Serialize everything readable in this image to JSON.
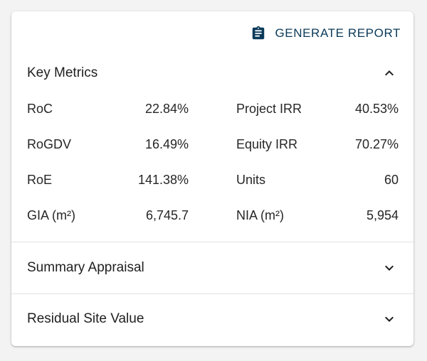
{
  "toolbar": {
    "generate_label": "GENERATE REPORT",
    "icon": "clipboard-icon"
  },
  "key_metrics": {
    "title": "Key Metrics",
    "expanded": true,
    "rows": [
      {
        "left_label": "RoC",
        "left_value": "22.84%",
        "right_label": "Project IRR",
        "right_value": "40.53%"
      },
      {
        "left_label": "RoGDV",
        "left_value": "16.49%",
        "right_label": "Equity IRR",
        "right_value": "70.27%"
      },
      {
        "left_label": "RoE",
        "left_value": "141.38%",
        "right_label": "Units",
        "right_value": "60"
      },
      {
        "left_label": "GIA (m²)",
        "left_value": "6,745.7",
        "right_label": "NIA (m²)",
        "right_value": "5,954"
      }
    ]
  },
  "summary_appraisal": {
    "title": "Summary Appraisal",
    "expanded": false
  },
  "residual_site_value": {
    "title": "Residual Site Value",
    "expanded": false
  },
  "colors": {
    "accent": "#0b3a5a",
    "text": "#262626",
    "divider": "#e2e2e2"
  }
}
